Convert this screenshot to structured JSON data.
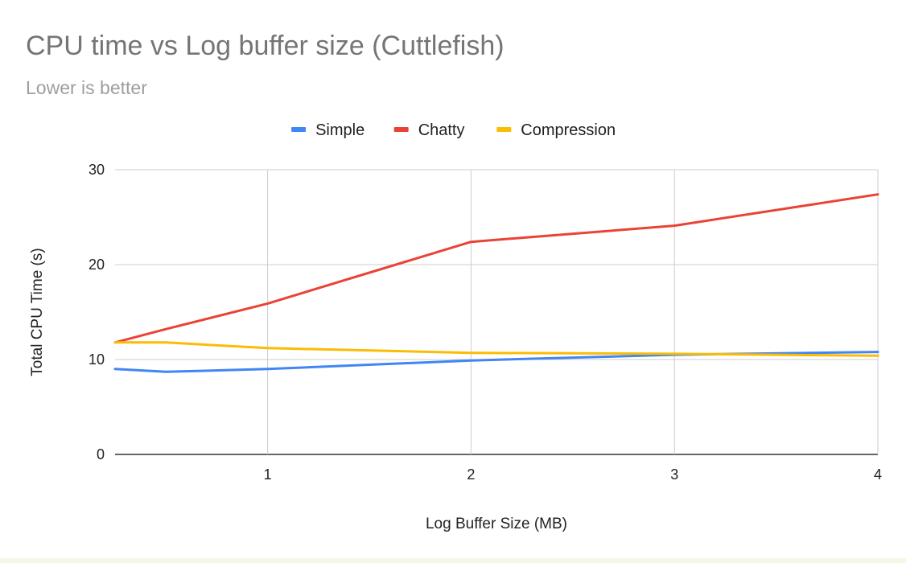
{
  "chart_data": {
    "type": "line",
    "title": "CPU time vs Log buffer size (Cuttlefish)",
    "subtitle": "Lower is better",
    "xlabel": "Log Buffer Size (MB)",
    "ylabel": "Total CPU Time (s)",
    "xlim": [
      0.25,
      4
    ],
    "ylim": [
      0,
      30
    ],
    "x_ticks": [
      1,
      2,
      3,
      4
    ],
    "y_ticks": [
      0,
      10,
      20,
      30
    ],
    "grid": true,
    "legend_position": "top",
    "x": [
      0.25,
      0.5,
      1,
      2,
      3,
      4
    ],
    "series": [
      {
        "name": "Simple",
        "color": "#4285f4",
        "values": [
          9.0,
          8.7,
          9.0,
          9.9,
          10.5,
          10.8
        ]
      },
      {
        "name": "Chatty",
        "color": "#ea4335",
        "values": [
          11.8,
          13.2,
          15.9,
          22.4,
          24.1,
          27.4
        ]
      },
      {
        "name": "Compression",
        "color": "#fbbc04",
        "values": [
          11.8,
          11.8,
          11.2,
          10.7,
          10.6,
          10.4
        ]
      }
    ]
  }
}
